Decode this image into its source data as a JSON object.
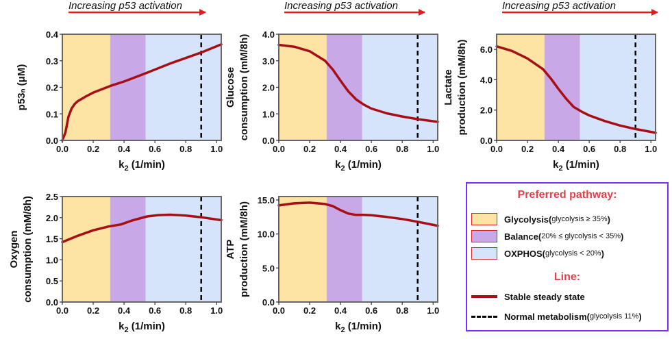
{
  "annotation": {
    "text": "Increasing  p53 activation",
    "color": "#e41a1c"
  },
  "colors": {
    "glycolysis": "#fde3a4",
    "balance": "#c8a8e6",
    "oxphos": "#d6e4fb",
    "line": "#a50f15",
    "normal": "#000000",
    "legend_border": "#7b2cff",
    "legend_title": "#e4404a"
  },
  "regions": {
    "glycolysis_end": 0.31,
    "balance_end": 0.54
  },
  "normal_k2": 0.9,
  "chart_data": [
    {
      "type": "line",
      "xlabel_main": "k",
      "xlabel_sub": "2",
      "xlabel_rest": " (1/min)",
      "ylabel_lines": [
        "p53ₙ (μM)"
      ],
      "xlim": [
        0.0,
        1.03
      ],
      "ylim": [
        0.0,
        0.4
      ],
      "xticks": [
        "0.0",
        "0.2",
        "0.4",
        "0.6",
        "0.8",
        "1.0"
      ],
      "yticks": [
        "0.0",
        "0.1",
        "0.2",
        "0.3",
        "0.4"
      ],
      "x": [
        0.0,
        0.02,
        0.04,
        0.06,
        0.08,
        0.1,
        0.15,
        0.2,
        0.31,
        0.4,
        0.54,
        0.7,
        0.9,
        1.03
      ],
      "y": [
        0.0,
        0.03,
        0.09,
        0.12,
        0.137,
        0.148,
        0.165,
        0.18,
        0.205,
        0.222,
        0.253,
        0.29,
        0.331,
        0.362
      ]
    },
    {
      "type": "line",
      "xlabel_main": "k",
      "xlabel_sub": "2",
      "xlabel_rest": " (1/min)",
      "ylabel_lines": [
        "Glucose",
        "consumption (mM/8h)"
      ],
      "xlim": [
        0.0,
        1.03
      ],
      "ylim": [
        0.0,
        4.0
      ],
      "xticks": [
        "0.0",
        "0.2",
        "0.4",
        "0.6",
        "0.8",
        "1.0"
      ],
      "yticks": [
        "0.0",
        "1.0",
        "2.0",
        "3.0",
        "4.0"
      ],
      "x": [
        0.0,
        0.1,
        0.2,
        0.3,
        0.35,
        0.4,
        0.45,
        0.5,
        0.55,
        0.6,
        0.7,
        0.8,
        0.9,
        1.03
      ],
      "y": [
        3.6,
        3.53,
        3.36,
        3.0,
        2.67,
        2.25,
        1.85,
        1.55,
        1.35,
        1.2,
        1.02,
        0.9,
        0.8,
        0.7
      ]
    },
    {
      "type": "line",
      "xlabel_main": "k",
      "xlabel_sub": "2",
      "xlabel_rest": " (1/min)",
      "ylabel_lines": [
        "Lactate",
        "production (mM/8h)"
      ],
      "xlim": [
        0.0,
        1.03
      ],
      "ylim": [
        0.0,
        7.0
      ],
      "xticks": [
        "0.0",
        "0.2",
        "0.4",
        "0.6",
        "0.8",
        "1.0"
      ],
      "yticks": [
        "0.0",
        "2.0",
        "4.0",
        "6.0"
      ],
      "x": [
        0.0,
        0.1,
        0.2,
        0.3,
        0.35,
        0.4,
        0.45,
        0.5,
        0.55,
        0.6,
        0.7,
        0.8,
        0.9,
        1.03
      ],
      "y": [
        6.2,
        5.9,
        5.4,
        4.7,
        4.1,
        3.4,
        2.75,
        2.2,
        1.9,
        1.65,
        1.28,
        0.98,
        0.75,
        0.5
      ]
    },
    {
      "type": "line",
      "xlabel_main": "k",
      "xlabel_sub": "2",
      "xlabel_rest": " (1/min)",
      "ylabel_lines": [
        "Oxygen",
        "consumption (mM/8h)"
      ],
      "xlim": [
        0.0,
        1.03
      ],
      "ylim": [
        0.0,
        2.5
      ],
      "xticks": [
        "0.0",
        "0.2",
        "0.4",
        "0.6",
        "0.8",
        "1.0"
      ],
      "yticks": [
        "0.0",
        "0.5",
        "1.0",
        "1.5",
        "2.0",
        "2.5"
      ],
      "x": [
        0.0,
        0.1,
        0.2,
        0.3,
        0.38,
        0.45,
        0.55,
        0.62,
        0.7,
        0.8,
        0.9,
        1.03
      ],
      "y": [
        1.42,
        1.57,
        1.7,
        1.79,
        1.84,
        1.93,
        2.03,
        2.06,
        2.07,
        2.05,
        2.01,
        1.94
      ]
    },
    {
      "type": "line",
      "xlabel_main": "k",
      "xlabel_sub": "2",
      "xlabel_rest": " (1/min)",
      "ylabel_lines": [
        "ATP",
        "production (mM/8h)"
      ],
      "xlim": [
        0.0,
        1.03
      ],
      "ylim": [
        0.0,
        15.5
      ],
      "xticks": [
        "0.0",
        "0.2",
        "0.4",
        "0.6",
        "0.8",
        "1.0"
      ],
      "yticks": [
        "0.0",
        "5.0",
        "10.0",
        "15.0"
      ],
      "x": [
        0.0,
        0.1,
        0.2,
        0.3,
        0.35,
        0.4,
        0.45,
        0.5,
        0.55,
        0.6,
        0.7,
        0.8,
        0.9,
        1.03
      ],
      "y": [
        14.2,
        14.5,
        14.6,
        14.4,
        14.1,
        13.5,
        13.0,
        12.8,
        12.8,
        12.75,
        12.5,
        12.2,
        11.8,
        11.2
      ]
    }
  ],
  "legend": {
    "title": "Preferred pathway:",
    "items": [
      {
        "label": "Glycolysis ",
        "open": "(",
        "detail": "glycolysis ≥ 35%",
        "close": ")"
      },
      {
        "label": "Balance ",
        "open": "(",
        "detail": "20% ≤ glycolysis < 35%",
        "close": ")"
      },
      {
        "label": "OXPHOS ",
        "open": "(",
        "detail": "glycolysis < 20%",
        "close": ")"
      }
    ],
    "line_title": "Line:",
    "line_items": [
      {
        "label": "Stable steady state"
      },
      {
        "label": "Normal metabolism ",
        "open": "(",
        "detail": "glycolysis 11%",
        "close": ")"
      }
    ]
  }
}
